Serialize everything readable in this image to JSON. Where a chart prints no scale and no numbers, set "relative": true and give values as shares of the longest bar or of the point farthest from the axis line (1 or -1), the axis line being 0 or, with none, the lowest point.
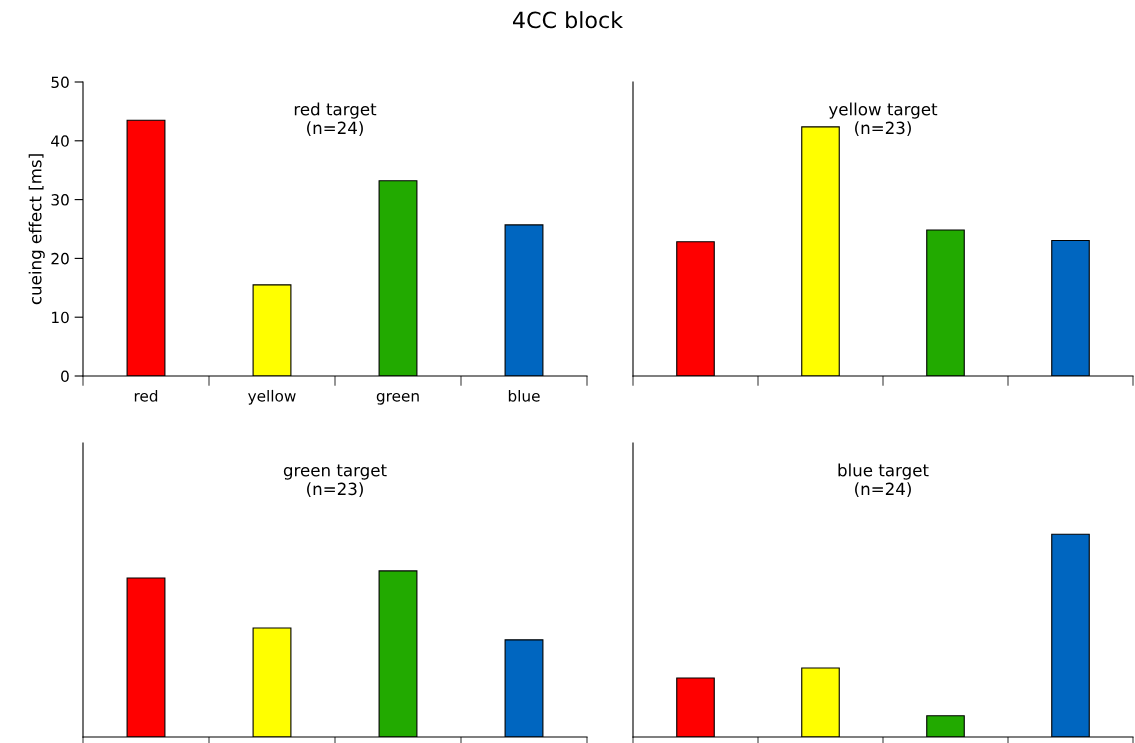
{
  "chart_data": [
    {
      "type": "bar",
      "title": "4CC block",
      "subtitle": "red target\n(n=24)",
      "ylabel": "cueing effect [ms]",
      "categories": [
        "red",
        "yellow",
        "green",
        "blue"
      ],
      "values": [
        43.5,
        15.5,
        33.2,
        25.7
      ],
      "colors": [
        "#ff0000",
        "#ffff00",
        "#22aa00",
        "#0066c0"
      ],
      "ylim": [
        0,
        50
      ],
      "yticks": [
        0,
        10,
        20,
        30,
        40,
        50
      ],
      "grid": false,
      "legend": false
    },
    {
      "type": "bar",
      "subtitle": "yellow target\n(n=23)",
      "categories": [
        null,
        null,
        null,
        null
      ],
      "values": [
        0.539,
        1,
        0.586,
        0.544
      ],
      "colors": [
        "#ff0000",
        "#ffff00",
        "#22aa00",
        "#0066c0"
      ],
      "relative": true,
      "grid": false,
      "legend": false
    },
    {
      "type": "bar",
      "subtitle": "green target\n(n=23)",
      "categories": [
        null,
        null,
        null,
        null
      ],
      "values": [
        0.957,
        0.656,
        1,
        0.585
      ],
      "colors": [
        "#ff0000",
        "#ffff00",
        "#22aa00",
        "#0066c0"
      ],
      "relative": true,
      "grid": false,
      "legend": false
    },
    {
      "type": "bar",
      "subtitle": "blue target\n(n=24)",
      "categories": [
        null,
        null,
        null,
        null
      ],
      "values": [
        0.291,
        0.34,
        0.105,
        1
      ],
      "colors": [
        "#ff0000",
        "#ffff00",
        "#22aa00",
        "#0066c0"
      ],
      "relative": true,
      "grid": false,
      "legend": false
    }
  ]
}
